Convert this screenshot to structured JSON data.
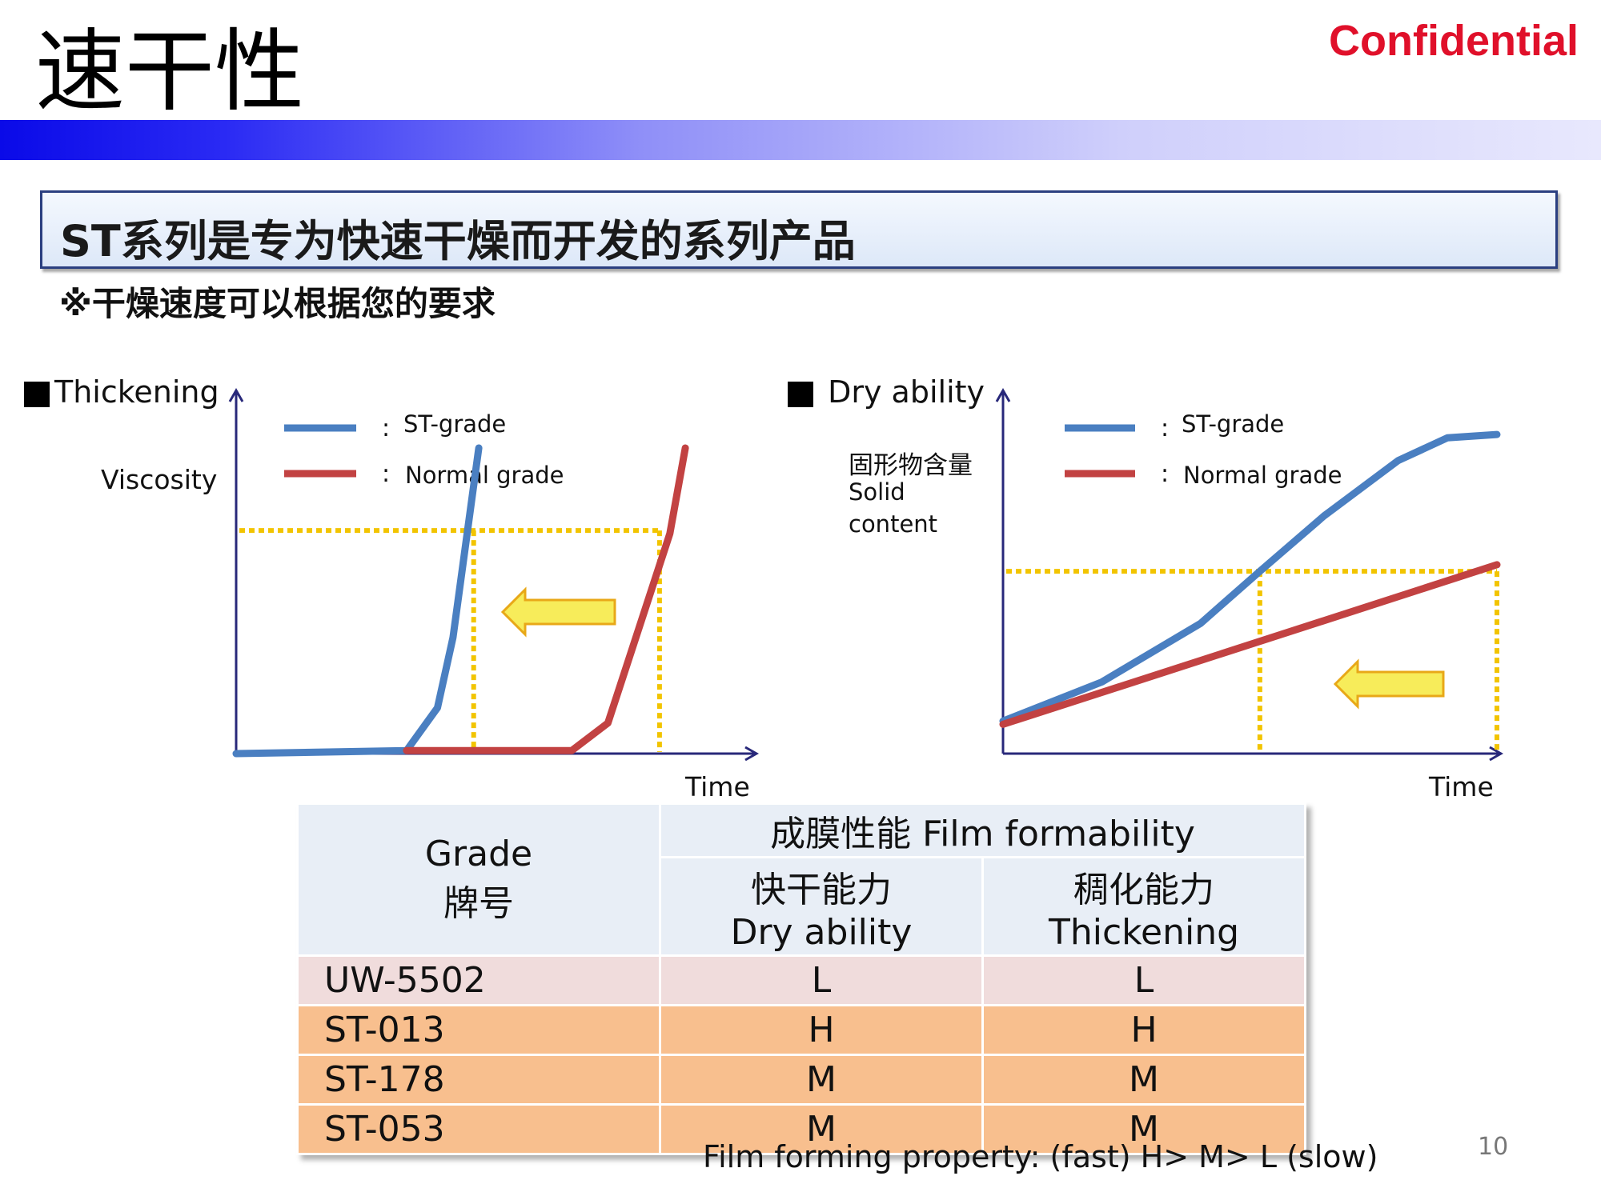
{
  "header": {
    "title": "速干性",
    "confidential": "Confidential"
  },
  "headline": "ST系列是专为快速干燥而开发的系列产品",
  "note": "※干燥速度可以根据您的要求",
  "colors": {
    "st_grade": "#4a7fc1",
    "normal_grade": "#c24242",
    "guide": "#f2c400",
    "arrow_fill": "#f7ec5a",
    "arrow_stroke": "#e8a818",
    "axis": "#28287a",
    "band_start": "#0a0ae8",
    "band_end": "#e8e8fd",
    "confidential": "#e0102a",
    "row_uw": "#f0dcdc",
    "row_st": "#f8bf8e",
    "header_bg": "#e8eef6"
  },
  "chart_data": [
    {
      "type": "line",
      "title": "Thickening",
      "ylabel": "Viscosity",
      "xlabel": "Time",
      "ylim": [
        0,
        100
      ],
      "xlim": [
        0,
        100
      ],
      "legend_position": "top",
      "series": [
        {
          "name": "ST-grade",
          "color": "#4a7fc1",
          "points": [
            [
              0,
              0
            ],
            [
              33,
              1
            ],
            [
              39,
              15
            ],
            [
              42,
              38
            ],
            [
              47,
              100
            ]
          ]
        },
        {
          "name": "Normal grade",
          "color": "#c24242",
          "points": [
            [
              33,
              1
            ],
            [
              65,
              1
            ],
            [
              72,
              10
            ],
            [
              84,
              72
            ],
            [
              87,
              100
            ]
          ]
        }
      ],
      "threshold_y": 73,
      "guides_x": [
        46,
        82
      ],
      "annotation": "left arrow: shorter time to reach threshold viscosity"
    },
    {
      "type": "line",
      "title": "Dry ability",
      "ylabel": "固形物含量\nSolid\ncontent",
      "xlabel": "Time",
      "ylim": [
        0,
        100
      ],
      "xlim": [
        0,
        100
      ],
      "legend_position": "top",
      "series": [
        {
          "name": "ST-grade",
          "color": "#4a7fc1",
          "points": [
            [
              0,
              10
            ],
            [
              20,
              22
            ],
            [
              40,
              40
            ],
            [
              52,
              56
            ],
            [
              65,
              73
            ],
            [
              80,
              90
            ],
            [
              90,
              97
            ],
            [
              100,
              98
            ]
          ]
        },
        {
          "name": "Normal grade",
          "color": "#c24242",
          "points": [
            [
              0,
              9
            ],
            [
              100,
              58
            ]
          ]
        }
      ],
      "threshold_y": 56,
      "guides_x": [
        52,
        100
      ],
      "annotation": "left arrow: shorter time to reach target solid content"
    }
  ],
  "charts": {
    "left": {
      "title": "Thickening",
      "ylabel": "Viscosity",
      "xlabel": "Time",
      "legend": [
        "ST-grade",
        "Normal grade"
      ]
    },
    "right": {
      "title": "Dry ability",
      "ylabel_cn": "固形物含量",
      "ylabel_en_1": "Solid",
      "ylabel_en_2": "content",
      "xlabel": "Time",
      "legend": [
        "ST-grade",
        "Normal grade"
      ]
    }
  },
  "table": {
    "grade_header_en": "Grade",
    "grade_header_cn": "牌号",
    "group_header": "成膜性能 Film formability",
    "col1_cn": "快干能力",
    "col1_en": "Dry ability",
    "col2_cn": "稠化能力",
    "col2_en": "Thickening",
    "rows": [
      {
        "grade": "UW-5502",
        "dry": "L",
        "thick": "L"
      },
      {
        "grade": "ST-013",
        "dry": "H",
        "thick": "H"
      },
      {
        "grade": "ST-178",
        "dry": "M",
        "thick": "M"
      },
      {
        "grade": "ST-053",
        "dry": "M",
        "thick": "M"
      }
    ]
  },
  "footnote": "Film forming property: (fast) H> M> L (slow)",
  "page_number": "10"
}
